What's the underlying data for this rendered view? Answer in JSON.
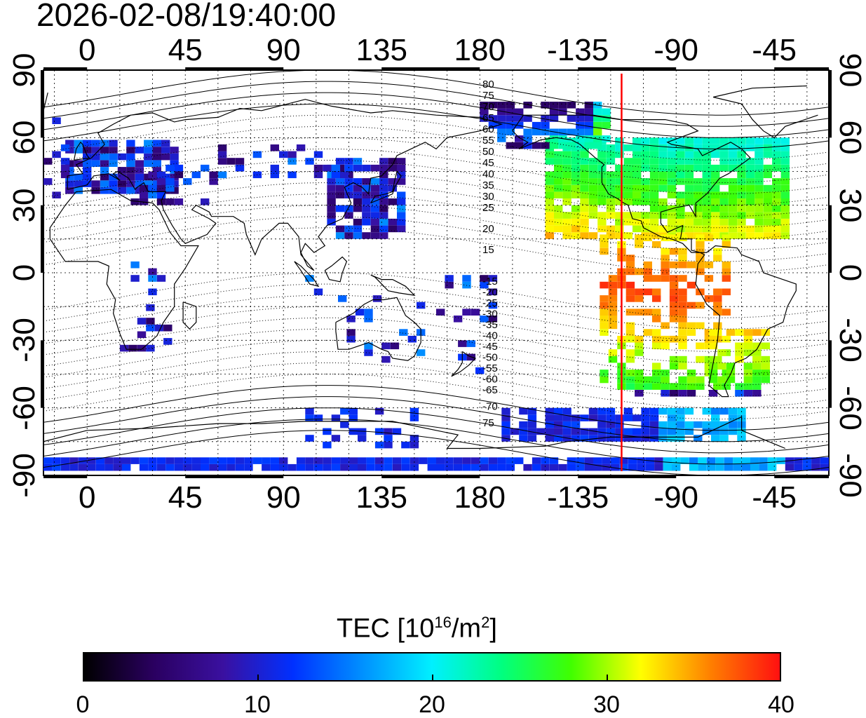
{
  "title": "2026-02-08/19:40:00",
  "map": {
    "x_tick_labels": [
      "0",
      "45",
      "90",
      "135",
      "180",
      "-135",
      "-90",
      "-45"
    ],
    "y_tick_labels": [
      "90",
      "60",
      "30",
      "0",
      "-30",
      "-60",
      "-90"
    ],
    "contour_labels_north": [
      "80",
      "75",
      "70",
      "65",
      "60",
      "55",
      "50",
      "45",
      "40",
      "35",
      "30",
      "25",
      "20",
      "15"
    ],
    "contour_labels_south": [
      "-15",
      "-20",
      "-25",
      "-30",
      "-35",
      "-40",
      "-45",
      "-50",
      "-55",
      "-60",
      "-65",
      "-70",
      "75"
    ],
    "terminator_longitude": -115,
    "colors": {
      "terminator": "#ff0000",
      "grid": "#000000"
    }
  },
  "colorbar": {
    "label_prefix": "TEC  [10",
    "label_exp1": "16",
    "label_mid": "/m",
    "label_exp2": "2",
    "label_suffix": "]",
    "min": 0,
    "max": 40,
    "tick_labels": [
      "0",
      "10",
      "20",
      "30",
      "40"
    ],
    "stops": [
      "#000000",
      "#2a0060",
      "#3a10a0",
      "#0030ff",
      "#0090ff",
      "#00f0ff",
      "#00ff80",
      "#40ff00",
      "#ffff00",
      "#ff8000",
      "#ff1010"
    ]
  }
}
